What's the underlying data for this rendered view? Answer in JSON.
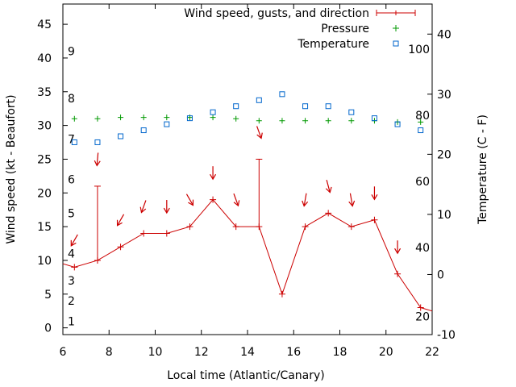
{
  "chart_data": {
    "type": "line",
    "xlabel": "Local time (Atlantic/Canary)",
    "ylabel_left": "Wind speed (kt - Beaufort)",
    "ylabel_right": "Temperature (C - F)",
    "xlim": [
      6,
      22
    ],
    "ylim_left": [
      -1,
      48
    ],
    "ylim_right": [
      -10,
      45
    ],
    "x_ticks": [
      "6",
      "8",
      "10",
      "12",
      "14",
      "16",
      "18",
      "20",
      "22"
    ],
    "y_left_ticks": [
      "0",
      "5",
      "10",
      "15",
      "20",
      "25",
      "30",
      "35",
      "40",
      "45"
    ],
    "y_right_ticks": [
      "-10",
      "0",
      "10",
      "20",
      "30",
      "40"
    ],
    "beaufort_labels": [
      {
        "text": "1",
        "y": 1
      },
      {
        "text": "2",
        "y": 4
      },
      {
        "text": "3",
        "y": 7
      },
      {
        "text": "4",
        "y": 11
      },
      {
        "text": "5",
        "y": 17
      },
      {
        "text": "6",
        "y": 22
      },
      {
        "text": "7",
        "y": 28
      },
      {
        "text": "8",
        "y": 34
      },
      {
        "text": "9",
        "y": 41
      }
    ],
    "fahrenheit_labels": [
      {
        "text": "20",
        "y": -7
      },
      {
        "text": "40",
        "y": 4.5
      },
      {
        "text": "60",
        "y": 15.5
      },
      {
        "text": "80",
        "y": 26.5
      },
      {
        "text": "100",
        "y": 37.5
      }
    ],
    "legend": {
      "position": "top-right",
      "wind": "Wind speed, gusts, and direction",
      "pressure": "Pressure",
      "temperature": "Temperature"
    },
    "colors": {
      "wind": "#cc0000",
      "pressure": "#009900",
      "temperature": "#0066cc"
    },
    "wind_series": {
      "x": [
        5.5,
        6.5,
        7.5,
        8.5,
        9.5,
        10.5,
        11.5,
        12.5,
        13.5,
        14.5,
        15.5,
        16.5,
        17.5,
        18.5,
        19.5,
        20.5,
        21.5,
        22.5
      ],
      "values": [
        10,
        9,
        10,
        12,
        14,
        14,
        15,
        19,
        15,
        15,
        5,
        15,
        17,
        15,
        16,
        8,
        3,
        2
      ]
    },
    "gusts": [
      {
        "x": 7.5,
        "low": 10,
        "high": 21
      },
      {
        "x": 14.5,
        "low": 15,
        "high": 25
      }
    ],
    "wind_arrows": [
      {
        "x": 6.5,
        "y": 13,
        "dir_deg": 30
      },
      {
        "x": 7.5,
        "y": 25,
        "dir_deg": 5
      },
      {
        "x": 8.5,
        "y": 16,
        "dir_deg": 30
      },
      {
        "x": 9.5,
        "y": 18,
        "dir_deg": 20
      },
      {
        "x": 10.5,
        "y": 18,
        "dir_deg": 0
      },
      {
        "x": 11.5,
        "y": 19,
        "dir_deg": -30
      },
      {
        "x": 12.5,
        "y": 23,
        "dir_deg": 0
      },
      {
        "x": 13.5,
        "y": 19,
        "dir_deg": -20
      },
      {
        "x": 14.5,
        "y": 29,
        "dir_deg": -20
      },
      {
        "x": 16.5,
        "y": 19,
        "dir_deg": 10
      },
      {
        "x": 17.5,
        "y": 21,
        "dir_deg": -15
      },
      {
        "x": 18.5,
        "y": 19,
        "dir_deg": -10
      },
      {
        "x": 19.5,
        "y": 20,
        "dir_deg": 0
      },
      {
        "x": 20.5,
        "y": 12,
        "dir_deg": 0
      }
    ],
    "pressure_series": {
      "x": [
        6.5,
        7.5,
        8.5,
        9.5,
        10.5,
        11.5,
        12.5,
        13.5,
        14.5,
        15.5,
        16.5,
        17.5,
        18.5,
        19.5,
        20.5,
        21.5
      ],
      "values": [
        31,
        31,
        31.2,
        31.2,
        31.2,
        31.2,
        31.2,
        31,
        30.7,
        30.7,
        30.7,
        30.7,
        30.7,
        30.7,
        30.5,
        30.5
      ]
    },
    "temperature_series": {
      "x": [
        6.5,
        7.5,
        8.5,
        9.5,
        10.5,
        11.5,
        12.5,
        13.5,
        14.5,
        15.5,
        16.5,
        17.5,
        18.5,
        19.5,
        20.5,
        21.5
      ],
      "values": [
        22,
        22,
        23,
        24,
        25,
        26,
        27,
        28,
        29,
        30,
        28,
        28,
        27,
        26,
        25,
        24
      ]
    }
  }
}
